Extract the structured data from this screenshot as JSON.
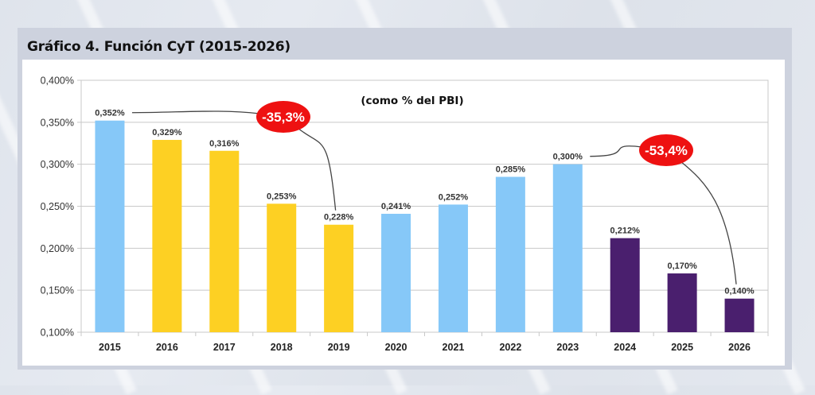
{
  "panel": {
    "title": "Gráfico 4. Función CyT (2015-2026)"
  },
  "chart_data": {
    "type": "bar",
    "title": "Gráfico 4. Función CyT (2015-2026)",
    "subtitle": "(como % del PBI)",
    "xlabel": "",
    "ylabel": "",
    "ylim": [
      0.1,
      0.4
    ],
    "yticks": [
      0.1,
      0.15,
      0.2,
      0.25,
      0.3,
      0.35,
      0.4
    ],
    "ytick_labels": [
      "0,100%",
      "0,150%",
      "0,200%",
      "0,250%",
      "0,300%",
      "0,350%",
      "0,400%"
    ],
    "grid": true,
    "legend": "none",
    "categories": [
      "2015",
      "2016",
      "2017",
      "2018",
      "2019",
      "2020",
      "2021",
      "2022",
      "2023",
      "2024",
      "2025",
      "2026"
    ],
    "values": [
      0.352,
      0.329,
      0.316,
      0.253,
      0.228,
      0.241,
      0.252,
      0.285,
      0.3,
      0.212,
      0.17,
      0.14
    ],
    "data_labels": [
      "0,352%",
      "0,329%",
      "0,316%",
      "0,253%",
      "0,228%",
      "0,241%",
      "0,252%",
      "0,285%",
      "0,300%",
      "0,212%",
      "0,170%",
      "0,140%"
    ],
    "bar_colors": [
      "#86c8f8",
      "#fdd023",
      "#fdd023",
      "#fdd023",
      "#fdd023",
      "#86c8f8",
      "#86c8f8",
      "#86c8f8",
      "#86c8f8",
      "#4a1f6e",
      "#4a1f6e",
      "#4a1f6e"
    ],
    "annotations": [
      {
        "text": "-35,3%",
        "from": "2015",
        "to": "2019",
        "color": "#ee1111"
      },
      {
        "text": "-53,4%",
        "from": "2023",
        "to": "2026",
        "color": "#ee1111"
      }
    ]
  }
}
